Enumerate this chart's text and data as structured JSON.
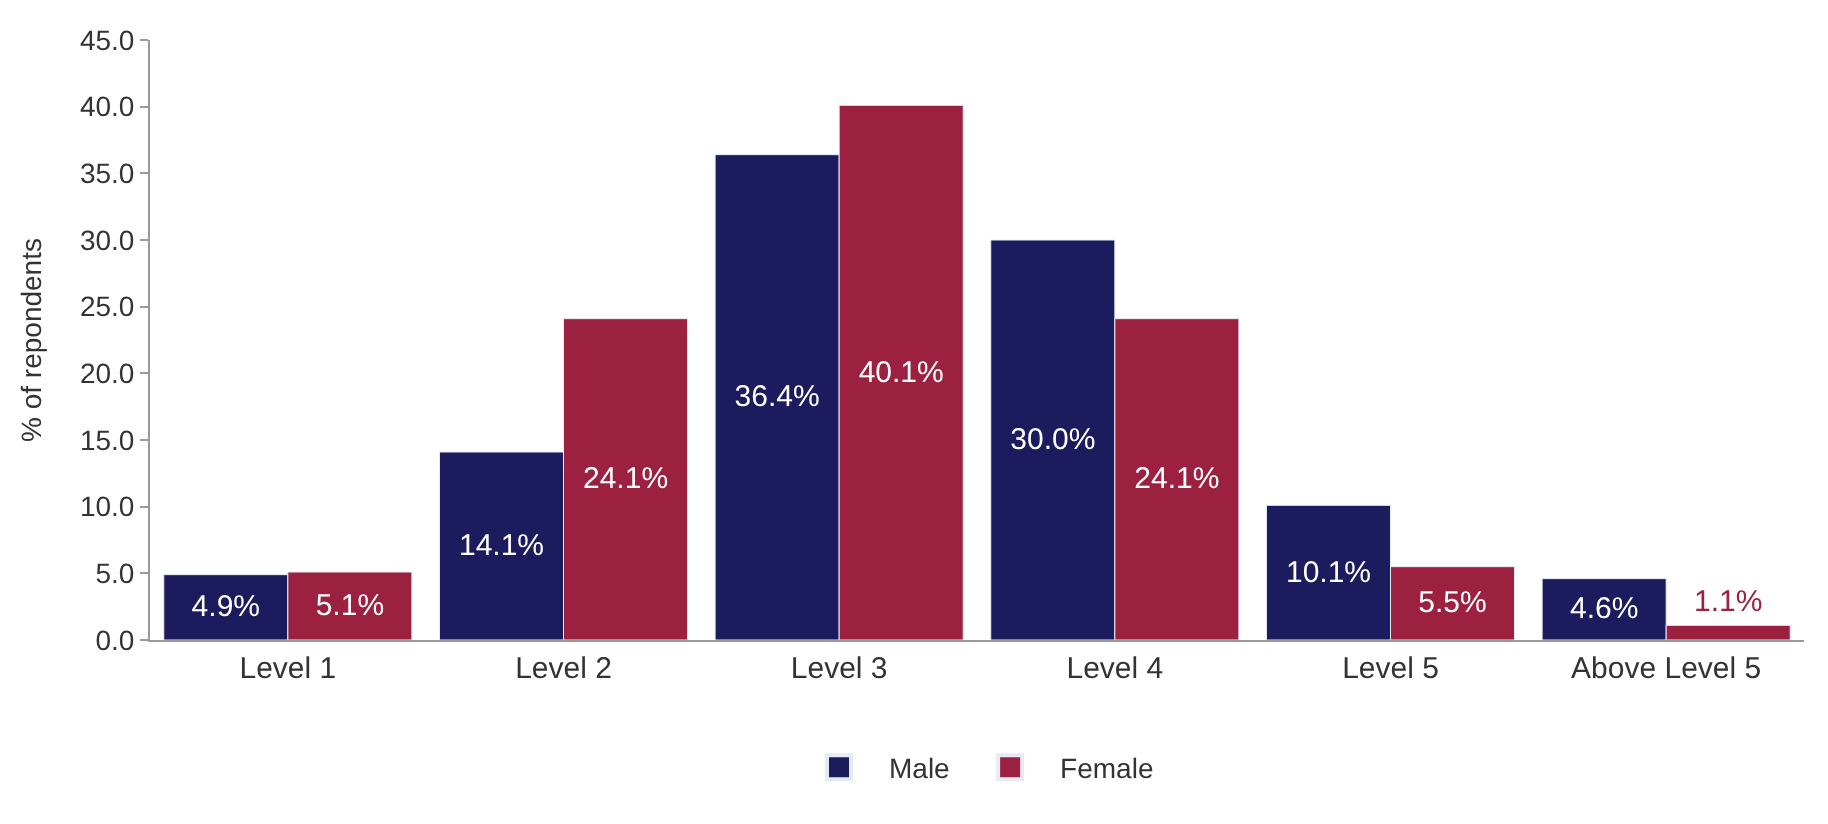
{
  "chart_data": {
    "type": "bar",
    "ylabel": "% of repondents",
    "categories": [
      "Level 1",
      "Level 2",
      "Level 3",
      "Level 4",
      "Level 5",
      "Above Level 5"
    ],
    "series": [
      {
        "name": "Male",
        "color": "#1b1b5e",
        "values": [
          4.9,
          14.1,
          36.4,
          30.0,
          10.1,
          4.6
        ],
        "value_labels": [
          "4.9%",
          "14.1%",
          "36.4%",
          "30.0%",
          "10.1%",
          "4.6%"
        ]
      },
      {
        "name": "Female",
        "color": "#9c2141",
        "values": [
          5.1,
          24.1,
          40.1,
          24.1,
          5.5,
          1.1
        ],
        "value_labels": [
          "5.1%",
          "24.1%",
          "40.1%",
          "24.1%",
          "5.5%",
          "1.1%"
        ]
      }
    ],
    "ylim": [
      0,
      45
    ],
    "yticks": [
      {
        "value": 0,
        "label": "0.0"
      },
      {
        "value": 5,
        "label": "5.0"
      },
      {
        "value": 10,
        "label": "10.0"
      },
      {
        "value": 15,
        "label": "15.0"
      },
      {
        "value": 20,
        "label": "20.0"
      },
      {
        "value": 25,
        "label": "25.0"
      },
      {
        "value": 30,
        "label": "30.0"
      },
      {
        "value": 35,
        "label": "35.0"
      },
      {
        "value": 40,
        "label": "40.0"
      },
      {
        "value": 45,
        "label": "45.0"
      }
    ],
    "legend": "bottom"
  }
}
